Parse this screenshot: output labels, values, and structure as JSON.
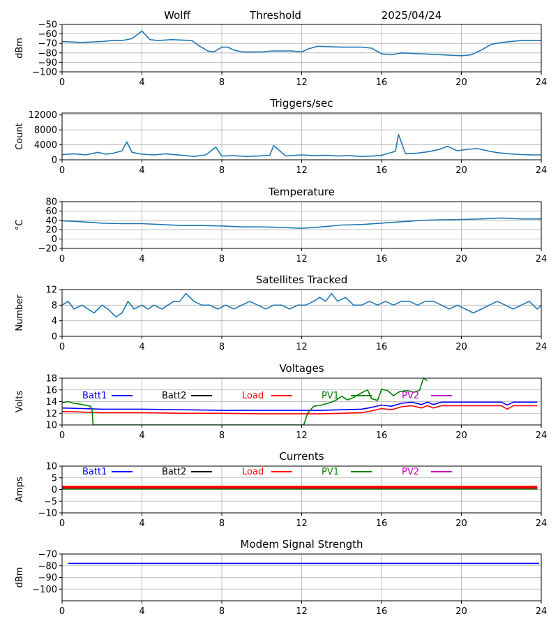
{
  "header": {
    "station": "Wolff",
    "mode": "Threshold",
    "date": "2025/04/24"
  },
  "legend_entries": [
    {
      "name": "Batt1",
      "color": "#0000ff"
    },
    {
      "name": "Batt2",
      "color": "#000000"
    },
    {
      "name": "Load",
      "color": "#ff0000"
    },
    {
      "name": "PV1",
      "color": "#008000"
    },
    {
      "name": "PV2",
      "color": "#bf00bf"
    }
  ],
  "chart_data": [
    {
      "type": "line",
      "title": "",
      "ylabel": "dBm",
      "xlim": [
        0,
        24
      ],
      "ylim": [
        -100,
        -50
      ],
      "xticks": [
        "0",
        "4",
        "8",
        "12",
        "16",
        "20",
        "24"
      ],
      "yticks": [
        "-50",
        "-60",
        "-70",
        "-80",
        "-90",
        "-100"
      ],
      "grid": true,
      "series": [
        {
          "color": "#1f77b4",
          "x": [
            0,
            1,
            2,
            2.5,
            3,
            3.5,
            4,
            4.4,
            4.8,
            5.5,
            6.5,
            6.9,
            7.3,
            7.6,
            8,
            8.3,
            8.6,
            9,
            10,
            10.5,
            11.5,
            12,
            12.3,
            12.8,
            14,
            15,
            15.5,
            16,
            16.5,
            17,
            18,
            19,
            20,
            20.5,
            21,
            21.5,
            22,
            23,
            24
          ],
          "y": [
            -68,
            -69,
            -68,
            -67,
            -67,
            -65,
            -57,
            -66,
            -67,
            -66,
            -67,
            -73,
            -78,
            -79,
            -74,
            -74,
            -77,
            -79,
            -79,
            -78,
            -78,
            -79,
            -76,
            -73,
            -74,
            -74,
            -75,
            -81,
            -82,
            -80,
            -81,
            -82,
            -83,
            -82,
            -77,
            -71,
            -69,
            -67,
            -67
          ]
        }
      ]
    },
    {
      "type": "line",
      "title": "Triggers/sec",
      "ylabel": "Count",
      "xlim": [
        0,
        24
      ],
      "ylim": [
        0,
        12500
      ],
      "xticks": [
        "0",
        "4",
        "8",
        "12",
        "16",
        "20",
        "24"
      ],
      "yticks": [
        "0",
        "4000",
        "8000",
        "12000"
      ],
      "grid": true,
      "series": [
        {
          "color": "#1f77b4",
          "x": [
            0,
            0.6,
            1.2,
            1.8,
            2.2,
            2.6,
            3,
            3.25,
            3.5,
            4,
            4.6,
            5.2,
            6,
            6.6,
            7.2,
            7.7,
            8,
            8.6,
            9.2,
            9.8,
            10.4,
            10.6,
            11.2,
            12,
            12.6,
            13.2,
            13.8,
            14.4,
            15,
            15.6,
            16,
            16.4,
            16.7,
            16.85,
            17.2,
            17.8,
            18.4,
            18.9,
            19.3,
            19.8,
            20.3,
            20.8,
            21.3,
            21.8,
            22.4,
            23,
            23.6,
            24
          ],
          "y": [
            1400,
            1600,
            1300,
            2000,
            1500,
            1800,
            2400,
            4800,
            2000,
            1500,
            1300,
            1600,
            1200,
            900,
            1300,
            3400,
            1000,
            1100,
            900,
            1000,
            1200,
            3800,
            1000,
            1300,
            1100,
            1200,
            1000,
            1100,
            900,
            1000,
            1200,
            1800,
            2300,
            6800,
            1600,
            1800,
            2200,
            2800,
            3600,
            2400,
            2800,
            3000,
            2400,
            1900,
            1600,
            1400,
            1300,
            1300
          ]
        }
      ]
    },
    {
      "type": "line",
      "title": "Temperature",
      "ylabel": "°C",
      "xlim": [
        0,
        24
      ],
      "ylim": [
        -20,
        80
      ],
      "xticks": [
        "0",
        "4",
        "8",
        "12",
        "16",
        "20",
        "24"
      ],
      "yticks": [
        "-20",
        "0",
        "20",
        "40",
        "60",
        "80"
      ],
      "grid": true,
      "series": [
        {
          "color": "#1f77b4",
          "x": [
            0,
            1,
            2,
            3,
            4,
            5,
            6,
            7,
            8,
            9,
            10,
            11,
            12,
            13,
            14,
            15,
            16,
            17,
            18,
            19,
            20,
            21,
            22,
            23,
            24
          ],
          "y": [
            39,
            37,
            34,
            33,
            33,
            31,
            29,
            29,
            28,
            26,
            26,
            25,
            23,
            26,
            30,
            31,
            34,
            37,
            40,
            41,
            42,
            43,
            45,
            43,
            43
          ]
        }
      ]
    },
    {
      "type": "line",
      "title": "Satellites Tracked",
      "ylabel": "Number",
      "xlim": [
        0,
        24
      ],
      "ylim": [
        0,
        12
      ],
      "xticks": [
        "0",
        "4",
        "8",
        "12",
        "16",
        "20",
        "24"
      ],
      "yticks": [
        "0",
        "4",
        "8",
        "12"
      ],
      "grid": true,
      "series": [
        {
          "color": "#1f77b4",
          "x": [
            0,
            0.3,
            0.6,
            1,
            1.3,
            1.6,
            2,
            2.3,
            2.7,
            3,
            3.3,
            3.6,
            4,
            4.3,
            4.6,
            5,
            5.3,
            5.6,
            5.9,
            6.2,
            6.6,
            7,
            7.4,
            7.8,
            8.2,
            8.6,
            9,
            9.4,
            9.8,
            10.2,
            10.6,
            11,
            11.4,
            11.8,
            12.2,
            12.6,
            12.9,
            13.2,
            13.5,
            13.8,
            14.2,
            14.6,
            15,
            15.4,
            15.8,
            16.2,
            16.6,
            17,
            17.4,
            17.8,
            18.2,
            18.6,
            19,
            19.4,
            19.8,
            20.2,
            20.6,
            21,
            21.4,
            21.8,
            22.2,
            22.6,
            23,
            23.4,
            23.8,
            24
          ],
          "y": [
            8,
            9,
            7,
            8,
            7,
            6,
            8,
            7,
            5,
            6,
            9,
            7,
            8,
            7,
            8,
            7,
            8,
            9,
            9,
            11,
            9,
            8,
            8,
            7,
            8,
            7,
            8,
            9,
            8,
            7,
            8,
            8,
            7,
            8,
            8,
            9,
            10,
            9,
            11,
            9,
            10,
            8,
            8,
            9,
            8,
            9,
            8,
            9,
            9,
            8,
            9,
            9,
            8,
            7,
            8,
            7,
            6,
            7,
            8,
            9,
            8,
            7,
            8,
            9,
            7,
            8
          ]
        }
      ]
    },
    {
      "type": "line",
      "title": "Voltages",
      "ylabel": "Volts",
      "xlim": [
        0,
        24
      ],
      "ylim": [
        10,
        18
      ],
      "xticks": [
        "0",
        "4",
        "8",
        "12",
        "16",
        "20",
        "24"
      ],
      "yticks": [
        "10",
        "12",
        "14",
        "16",
        "18"
      ],
      "grid": true,
      "legend": "top",
      "series": [
        {
          "name": "Batt1",
          "color": "#0000ff",
          "x": [
            0,
            1,
            2,
            3,
            4,
            6,
            8,
            10,
            12,
            13,
            14,
            15,
            15.5,
            16,
            16.5,
            17,
            17.5,
            18,
            18.3,
            18.6,
            19,
            19.5,
            20,
            20.5,
            21,
            21.5,
            22,
            22.3,
            22.6,
            23,
            23.8
          ],
          "y": [
            12.9,
            12.8,
            12.7,
            12.7,
            12.7,
            12.6,
            12.5,
            12.5,
            12.5,
            12.5,
            12.6,
            12.7,
            13.0,
            13.4,
            13.2,
            13.7,
            13.9,
            13.5,
            13.9,
            13.5,
            13.9,
            13.9,
            13.9,
            13.9,
            13.9,
            13.9,
            13.9,
            13.4,
            13.9,
            13.9,
            13.9
          ]
        },
        {
          "name": "Load",
          "color": "#ff0000",
          "x": [
            0,
            1,
            2,
            3,
            4,
            6,
            8,
            10,
            12,
            13,
            14,
            15,
            15.5,
            16,
            16.5,
            17,
            17.5,
            18,
            18.3,
            18.6,
            19,
            19.5,
            20,
            20.5,
            21,
            21.5,
            22,
            22.3,
            22.6,
            23,
            23.8
          ],
          "y": [
            12.3,
            12.2,
            12.1,
            12.1,
            12.1,
            12.0,
            12.0,
            11.9,
            11.9,
            11.9,
            12.0,
            12.1,
            12.4,
            12.8,
            12.6,
            13.1,
            13.3,
            12.9,
            13.3,
            12.9,
            13.3,
            13.3,
            13.3,
            13.3,
            13.3,
            13.3,
            13.3,
            12.7,
            13.3,
            13.3,
            13.3
          ]
        },
        {
          "name": "PV1",
          "color": "#008000",
          "x": [
            0,
            0.3,
            0.6,
            1,
            1.4,
            1.5,
            1.55,
            12.1,
            12.3,
            12.6,
            13,
            13.4,
            13.7,
            14,
            14.3,
            14.6,
            15,
            15.3,
            15.5,
            15.8,
            16,
            16.3,
            16.6,
            16.9,
            17.3,
            17.6,
            17.9,
            18.1,
            18.3
          ],
          "y": [
            13.8,
            14.0,
            13.7,
            13.5,
            13.2,
            12.8,
            10.0,
            10.0,
            12.0,
            13.2,
            13.4,
            13.8,
            14.2,
            14.9,
            14.3,
            14.7,
            15.5,
            16.0,
            14.5,
            14.2,
            16.1,
            15.9,
            15.0,
            15.7,
            15.9,
            15.6,
            15.9,
            18.0,
            17.6
          ]
        }
      ]
    },
    {
      "type": "line",
      "title": "Currents",
      "ylabel": "Amps",
      "xlim": [
        0,
        24
      ],
      "ylim": [
        -10,
        10
      ],
      "xticks": [
        "0",
        "4",
        "8",
        "12",
        "16",
        "20",
        "24"
      ],
      "yticks": [
        "-10",
        "-5",
        "0",
        "5",
        "10"
      ],
      "grid": true,
      "legend": "top",
      "series": [
        {
          "name": "Batt1",
          "color": "#0000ff",
          "x": [
            0,
            23.8
          ],
          "y": [
            0.3,
            0.3
          ]
        },
        {
          "name": "Batt2",
          "color": "#000000",
          "x": [
            0,
            23.8
          ],
          "y": [
            0.5,
            0.5
          ]
        },
        {
          "name": "PV1",
          "color": "#008000",
          "x": [
            0,
            23.8
          ],
          "y": [
            0.2,
            0.2
          ]
        },
        {
          "name": "PV2",
          "color": "#bf00bf",
          "x": [
            0,
            23.8
          ],
          "y": [
            0.6,
            0.6
          ]
        },
        {
          "name": "Load",
          "color": "#ff0000",
          "x": [
            0,
            23.8
          ],
          "y": [
            1.0,
            1.0
          ]
        }
      ]
    },
    {
      "type": "line",
      "title": "Modem Signal Strength",
      "ylabel": "dBm",
      "xlim": [
        0,
        24
      ],
      "ylim": [
        -110,
        -70
      ],
      "xticks": [
        "0",
        "4",
        "8",
        "12",
        "16",
        "20",
        "24"
      ],
      "yticks": [
        "-70",
        "-80",
        "-90",
        "-100"
      ],
      "grid": true,
      "series": [
        {
          "color": "#0000ff",
          "x": [
            0.3,
            23.9
          ],
          "y": [
            -78,
            -78
          ]
        }
      ]
    }
  ]
}
